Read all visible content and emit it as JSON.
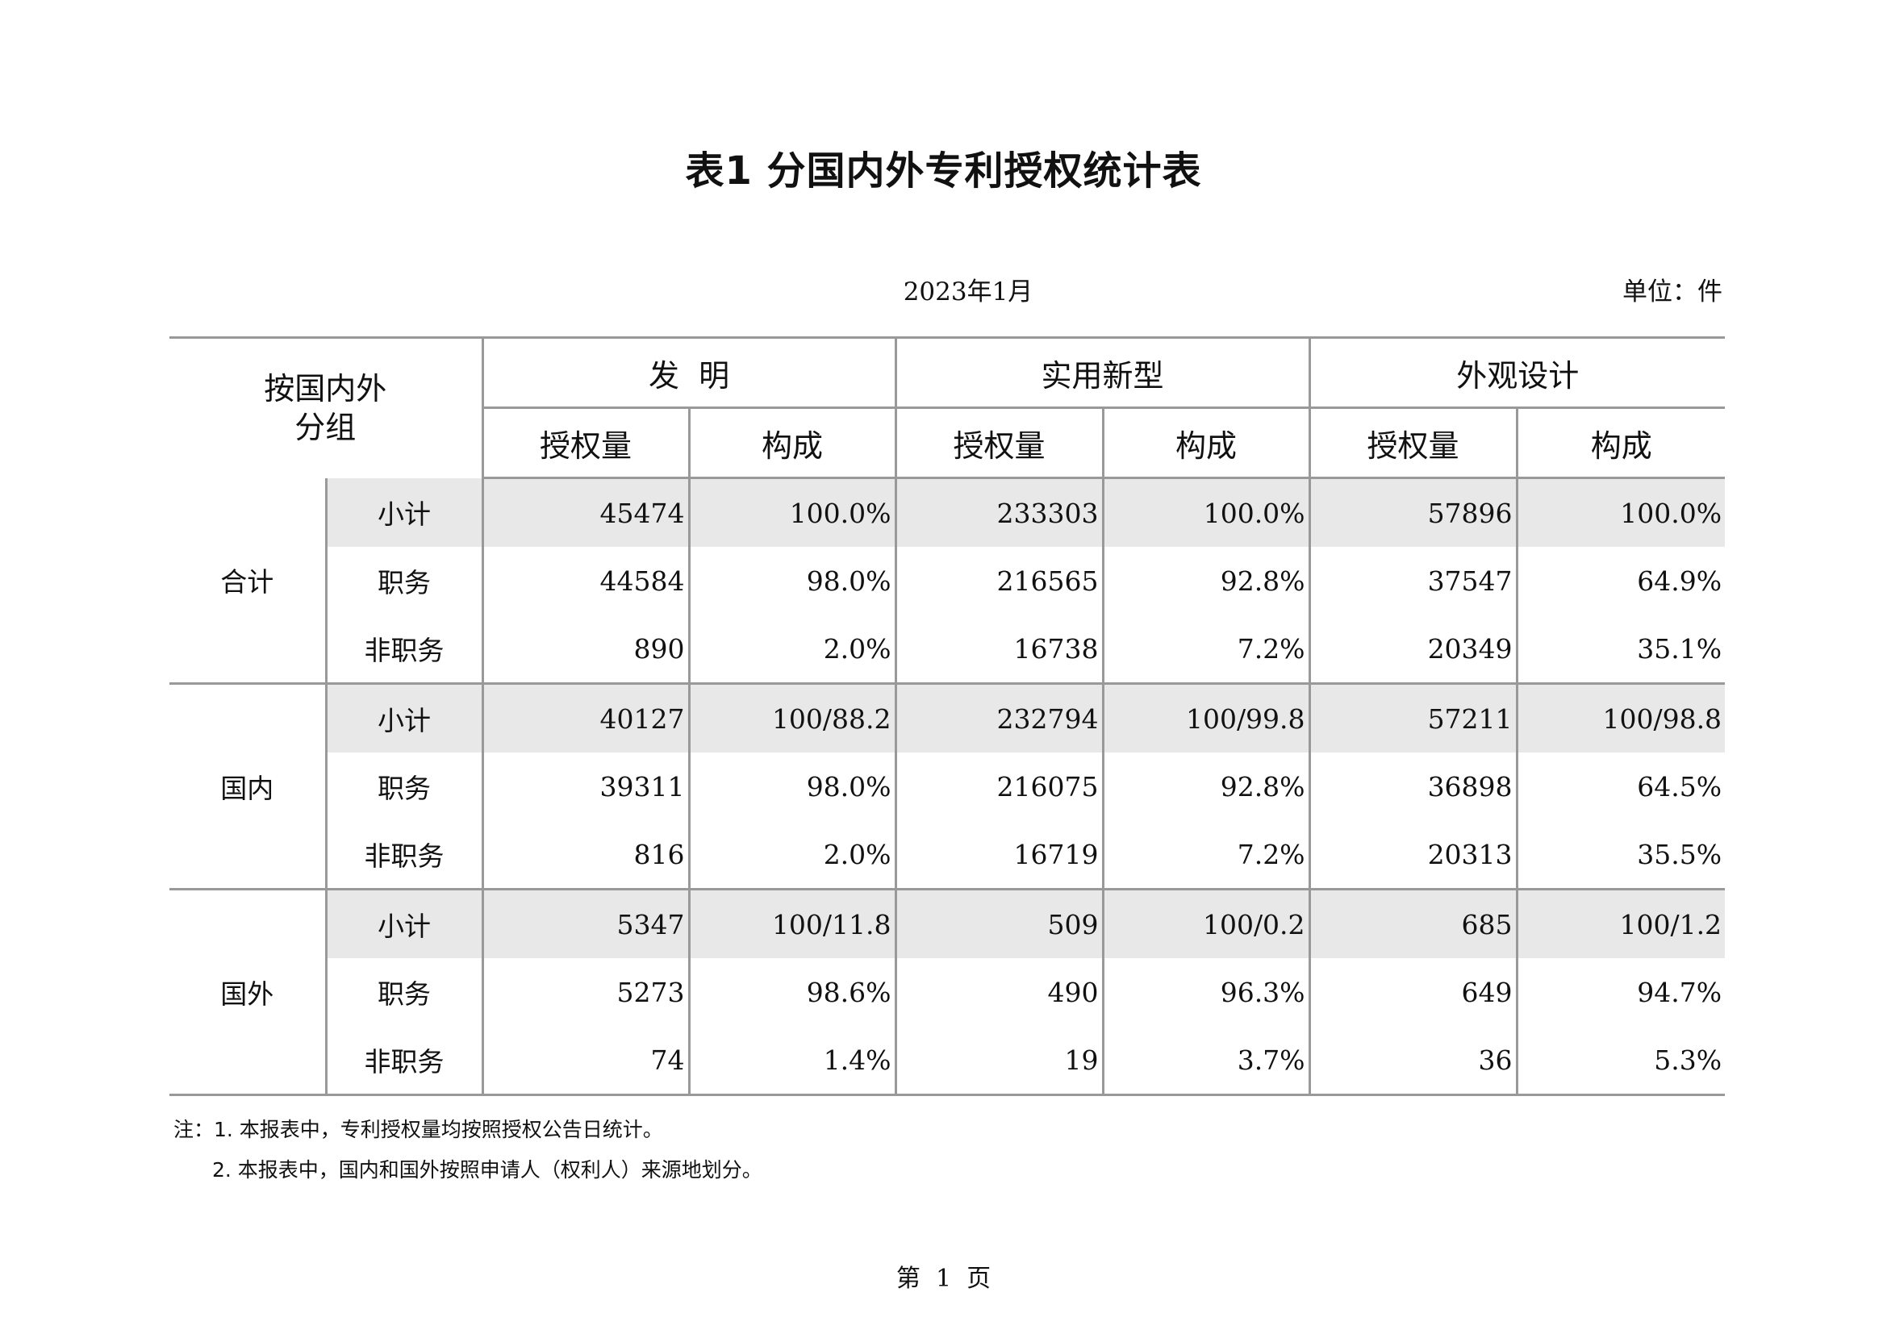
{
  "title": "表1  分国内外专利授权统计表",
  "date": "2023年1月",
  "unit": "单位：件",
  "table": {
    "corner_line1": "按国内外",
    "corner_line2": "分组",
    "groups": [
      "发  明",
      "实用新型",
      "外观设计"
    ],
    "subheaders": [
      "授权量",
      "构成",
      "授权量",
      "构成",
      "授权量",
      "构成"
    ],
    "sections": [
      {
        "label": "合计",
        "rows": [
          {
            "label": "小计",
            "values": [
              "45474",
              "100.0%",
              "233303",
              "100.0%",
              "57896",
              "100.0%"
            ]
          },
          {
            "label": "职务",
            "values": [
              "44584",
              "98.0%",
              "216565",
              "92.8%",
              "37547",
              "64.9%"
            ]
          },
          {
            "label": "非职务",
            "values": [
              "890",
              "2.0%",
              "16738",
              "7.2%",
              "20349",
              "35.1%"
            ]
          }
        ]
      },
      {
        "label": "国内",
        "rows": [
          {
            "label": "小计",
            "values": [
              "40127",
              "100/88.2",
              "232794",
              "100/99.8",
              "57211",
              "100/98.8"
            ]
          },
          {
            "label": "职务",
            "values": [
              "39311",
              "98.0%",
              "216075",
              "92.8%",
              "36898",
              "64.5%"
            ]
          },
          {
            "label": "非职务",
            "values": [
              "816",
              "2.0%",
              "16719",
              "7.2%",
              "20313",
              "35.5%"
            ]
          }
        ]
      },
      {
        "label": "国外",
        "rows": [
          {
            "label": "小计",
            "values": [
              "5347",
              "100/11.8",
              "509",
              "100/0.2",
              "685",
              "100/1.2"
            ]
          },
          {
            "label": "职务",
            "values": [
              "5273",
              "98.6%",
              "490",
              "96.3%",
              "649",
              "94.7%"
            ]
          },
          {
            "label": "非职务",
            "values": [
              "74",
              "1.4%",
              "19",
              "3.7%",
              "36",
              "5.3%"
            ]
          }
        ]
      }
    ]
  },
  "notes": [
    "注：1. 本报表中，专利授权量均按照授权公告日统计。",
    "2. 本报表中，国内和国外按照申请人（权利人）来源地划分。"
  ],
  "page_number": "第  1  页"
}
